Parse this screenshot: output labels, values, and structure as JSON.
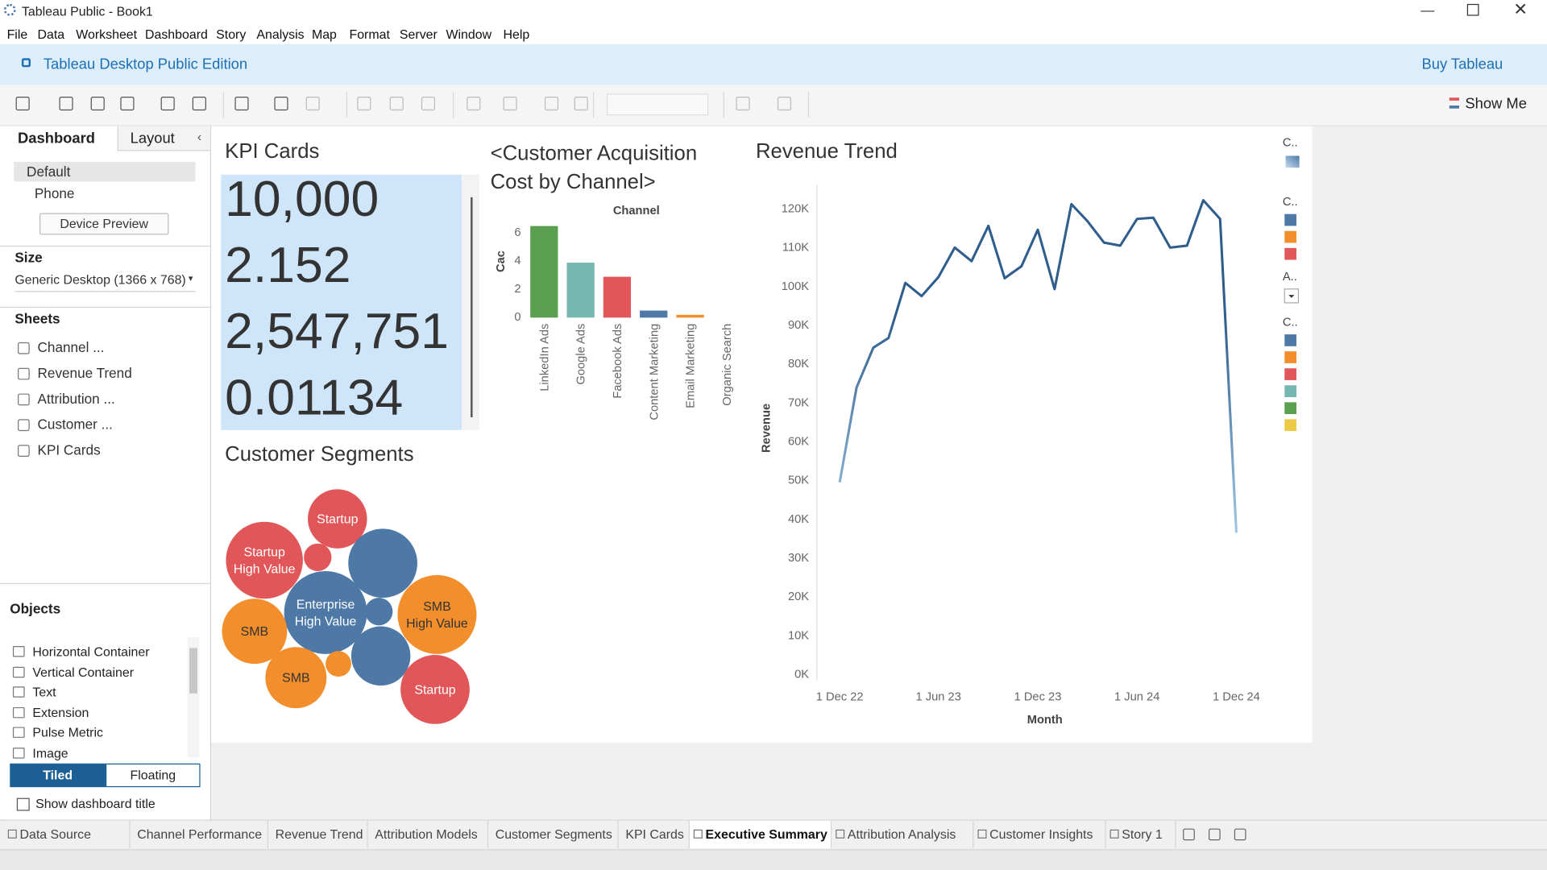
{
  "window": {
    "title": "Tableau Public - Book1"
  },
  "menu": [
    "File",
    "Data",
    "Worksheet",
    "Dashboard",
    "Story",
    "Analysis",
    "Map",
    "Format",
    "Server",
    "Window",
    "Help"
  ],
  "banner": {
    "edition": "Tableau Desktop Public Edition",
    "buy": "Buy Tableau"
  },
  "toolbar": {
    "show_me": "Show Me"
  },
  "left_panel": {
    "tabs": [
      "Dashboard",
      "Layout"
    ],
    "devices": [
      "Default",
      "Phone"
    ],
    "device_preview": "Device Preview",
    "size_heading": "Size",
    "size_value": "Generic Desktop (1366 x 768)",
    "sheets_heading": "Sheets",
    "sheets": [
      "Channel ...",
      "Revenue Trend",
      "Attribution ...",
      "Customer ...",
      "KPI Cards"
    ],
    "objects_heading": "Objects",
    "objects": [
      "Horizontal Container",
      "Vertical Container",
      "Text",
      "Extension",
      "Pulse Metric",
      "Image"
    ],
    "layout_modes": [
      "Tiled",
      "Floating"
    ],
    "show_title": "Show dashboard title"
  },
  "kpi": {
    "title": "KPI Cards",
    "values": [
      "10,000",
      "2.152",
      "2,547,751",
      "0.01134"
    ]
  },
  "chart_data": [
    {
      "type": "bar",
      "title": "<Customer Acquisition Cost by Channel>",
      "header": "Channel",
      "y_label": "Cac",
      "categories": [
        "LinkedIn Ads",
        "Google Ads",
        "Facebook Ads",
        "Content Marketing",
        "Email Marketing",
        "Organic Search"
      ],
      "values": [
        6.5,
        3.9,
        2.9,
        0.5,
        0.2,
        0
      ],
      "colors": [
        "#59a14f",
        "#76b7b2",
        "#e15759",
        "#4e79a7",
        "#f28e2b",
        "#bab0ac"
      ],
      "ylim": [
        0,
        7
      ],
      "yticks": [
        0,
        2,
        4,
        6
      ],
      "grid": false
    },
    {
      "type": "line",
      "title": "Revenue Trend",
      "x_label": "Month",
      "y_label": "Revenue",
      "x": [
        "2022-12-01",
        "2023-01-01",
        "2023-02-01",
        "2023-03-01",
        "2023-04-01",
        "2023-05-01",
        "2023-06-01",
        "2023-07-01",
        "2023-08-01",
        "2023-09-01",
        "2023-10-01",
        "2023-11-01",
        "2023-12-01",
        "2024-01-01",
        "2024-02-01",
        "2024-03-01",
        "2024-04-01",
        "2024-05-01",
        "2024-06-01",
        "2024-07-01",
        "2024-08-01",
        "2024-09-01",
        "2024-10-01",
        "2024-11-01",
        "2024-12-01"
      ],
      "values": [
        49600,
        74000,
        84300,
        86800,
        101000,
        97600,
        102500,
        110100,
        106600,
        115700,
        102200,
        105300,
        114700,
        99400,
        121300,
        117000,
        111400,
        110600,
        117500,
        117800,
        110100,
        110600,
        122300,
        117500,
        36600
      ],
      "color_range": [
        "#a9cfe9",
        "#2f5d8c"
      ],
      "xlim": [
        "2022-10-20",
        "2025-02-06"
      ],
      "xticks": [
        {
          "value": "2022-12-01",
          "label": "1 Dec 22"
        },
        {
          "value": "2023-06-01",
          "label": "1 Jun 23"
        },
        {
          "value": "2023-12-01",
          "label": "1 Dec 23"
        },
        {
          "value": "2024-06-01",
          "label": "1 Jun 24"
        },
        {
          "value": "2024-12-01",
          "label": "1 Dec 24"
        }
      ],
      "ylim": [
        0,
        125000
      ],
      "yticks": [
        {
          "value": 0,
          "label": "0K"
        },
        {
          "value": 10000,
          "label": "10K"
        },
        {
          "value": 20000,
          "label": "20K"
        },
        {
          "value": 30000,
          "label": "30K"
        },
        {
          "value": 40000,
          "label": "40K"
        },
        {
          "value": 50000,
          "label": "50K"
        },
        {
          "value": 60000,
          "label": "60K"
        },
        {
          "value": 70000,
          "label": "70K"
        },
        {
          "value": 80000,
          "label": "80K"
        },
        {
          "value": 90000,
          "label": "90K"
        },
        {
          "value": 100000,
          "label": "100K"
        },
        {
          "value": 110000,
          "label": "110K"
        },
        {
          "value": 120000,
          "label": "120K"
        }
      ],
      "grid": false
    },
    {
      "type": "bubble",
      "title": "Customer Segments",
      "categories": [
        "Startup",
        "Startup\nHigh Value",
        null,
        null,
        "Enterprise\nHigh Value",
        "SMB",
        null,
        "SMB\nHigh Value",
        "SMB",
        null,
        null,
        "Startup"
      ],
      "values": [
        900,
        1521,
        196,
        1225,
        1764,
        1089,
        196,
        1600,
        961,
        169,
        900,
        1225
      ],
      "colors": [
        "#e15759",
        "#e15759",
        "#e15759",
        "#4e79a7",
        "#4e79a7",
        "#f28e2b",
        "#4e79a7",
        "#f28e2b",
        "#f28e2b",
        "#f28e2b",
        "#4e79a7",
        "#e15759"
      ]
    }
  ],
  "legends": [
    {
      "title": "C..",
      "colors": [
        "#c6dbef",
        "#4a78a6"
      ]
    },
    {
      "title": "C..",
      "colors": [
        "#4e79a7",
        "#f28e2b",
        "#e15759"
      ]
    },
    {
      "title": "A.."
    },
    {
      "title": "C..",
      "colors": [
        "#4e79a7",
        "#f28e2b",
        "#e15759",
        "#76b7b2",
        "#59a14f",
        "#edc948"
      ]
    }
  ],
  "sheet_tabs": [
    "Data Source",
    "Channel Performance",
    "Revenue Trend",
    "Attribution Models",
    "Customer Segments",
    "KPI Cards",
    "Executive Summary",
    "Attribution Analysis",
    "Customer Insights",
    "Story 1"
  ]
}
